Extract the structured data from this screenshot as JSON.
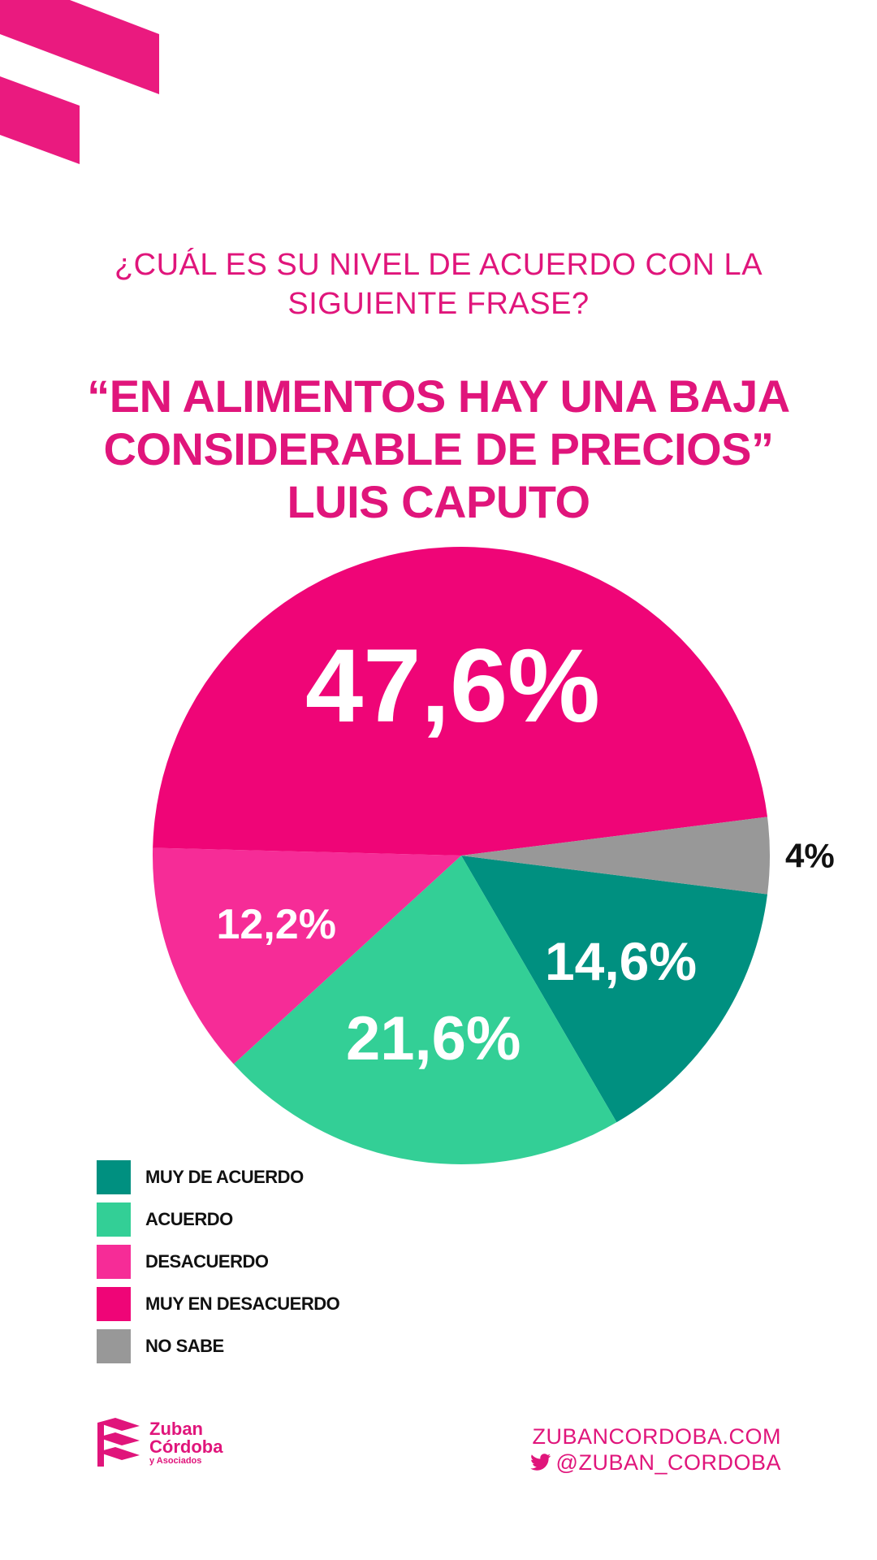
{
  "header": {
    "question_line1": "¿CUÁL ES SU NIVEL DE ACUERDO CON LA",
    "question_line2": "SIGUIENTE FRASE?",
    "quote_line1": "“EN ALIMENTOS HAY UNA BAJA",
    "quote_line2": "CONSIDERABLE DE PRECIOS”",
    "quote_line3": "LUIS CAPUTO"
  },
  "chart_data": {
    "type": "pie",
    "title": "“EN ALIMENTOS HAY UNA BAJA CONSIDERABLE DE PRECIOS” LUIS CAPUTO",
    "legend_position": "bottom-left",
    "slices": [
      {
        "label": "MUY DE ACUERDO",
        "value": 14.6,
        "display": "14,6%",
        "color": "#009080"
      },
      {
        "label": "ACUERDO",
        "value": 21.6,
        "display": "21,6%",
        "color": "#33cf96"
      },
      {
        "label": "DESACUERDO",
        "value": 12.2,
        "display": "12,2%",
        "color": "#f62c97"
      },
      {
        "label": "MUY EN DESACUERDO",
        "value": 47.6,
        "display": "47,6%",
        "color": "#ef0577"
      },
      {
        "label": "NO SABE",
        "value": 4,
        "display": "4%",
        "color": "#989898"
      }
    ]
  },
  "legend": {
    "items": [
      "MUY DE ACUERDO",
      "ACUERDO",
      "DESACUERDO",
      "MUY EN DESACUERDO",
      "NO SABE"
    ]
  },
  "footer": {
    "brand_line1": "Zuban",
    "brand_line2": "Córdoba",
    "brand_line3": "y Asociados",
    "website": "ZUBANCORDOBA.COM",
    "twitter": "@ZUBAN_CORDOBA"
  },
  "colors": {
    "accent": "#e0157b",
    "muy_de_acuerdo": "#009080",
    "acuerdo": "#33cf96",
    "desacuerdo": "#f62c97",
    "muy_en_desacuerdo": "#ef0577",
    "no_sabe": "#989898"
  }
}
